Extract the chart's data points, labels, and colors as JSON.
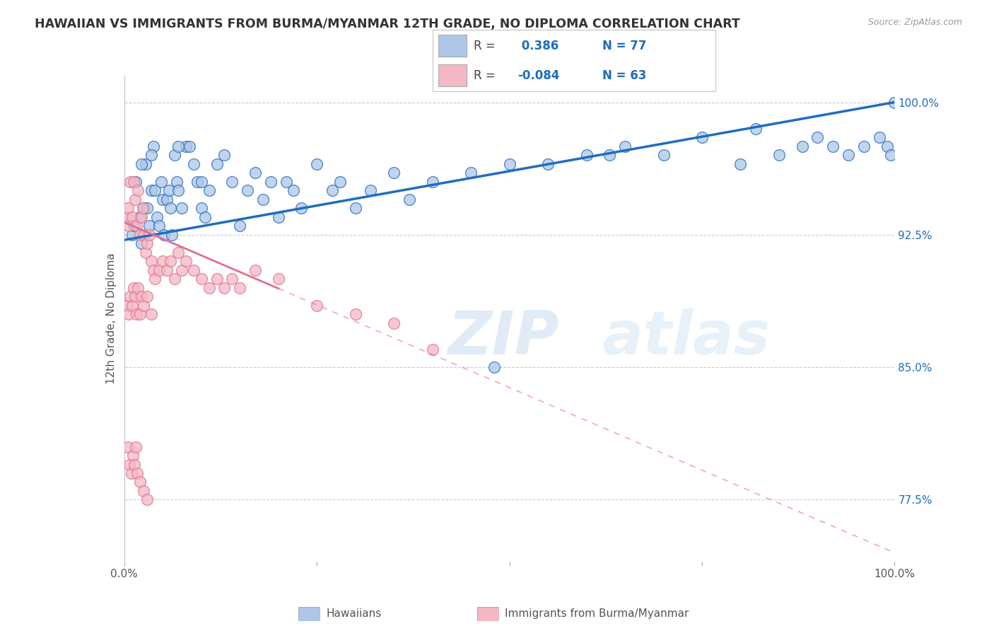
{
  "title": "HAWAIIAN VS IMMIGRANTS FROM BURMA/MYANMAR 12TH GRADE, NO DIPLOMA CORRELATION CHART",
  "source": "Source: ZipAtlas.com",
  "ylabel": "12th Grade, No Diploma",
  "right_yticks": [
    77.5,
    85.0,
    92.5,
    100.0
  ],
  "right_ytick_labels": [
    "77.5%",
    "85.0%",
    "92.5%",
    "100.0%"
  ],
  "xmin": 0.0,
  "xmax": 100.0,
  "ymin": 74.0,
  "ymax": 101.5,
  "blue_R": 0.386,
  "blue_N": 77,
  "pink_R": -0.084,
  "pink_N": 63,
  "blue_color": "#aec6e8",
  "blue_line_color": "#1f6dbf",
  "pink_color": "#f4b8c4",
  "pink_line_color": "#e07090",
  "watermark_zip": "ZIP",
  "watermark_atlas": "atlas",
  "legend_label_blue": "Hawaiians",
  "legend_label_pink": "Immigrants from Burma/Myanmar",
  "blue_scatter_x": [
    1.0,
    1.2,
    1.5,
    2.0,
    2.2,
    2.5,
    2.8,
    3.0,
    3.2,
    3.5,
    3.8,
    4.0,
    4.2,
    4.5,
    4.8,
    5.0,
    5.2,
    5.5,
    5.8,
    6.0,
    6.2,
    6.5,
    6.8,
    7.0,
    7.5,
    8.0,
    8.5,
    9.0,
    9.5,
    10.0,
    10.5,
    11.0,
    12.0,
    13.0,
    14.0,
    15.0,
    16.0,
    17.0,
    18.0,
    19.0,
    20.0,
    21.0,
    22.0,
    23.0,
    25.0,
    27.0,
    28.0,
    30.0,
    32.0,
    35.0,
    37.0,
    40.0,
    45.0,
    50.0,
    55.0,
    60.0,
    65.0,
    70.0,
    75.0,
    80.0,
    82.0,
    85.0,
    88.0,
    90.0,
    92.0,
    94.0,
    96.0,
    98.0,
    99.0,
    99.5,
    100.0,
    48.0,
    63.0,
    3.5,
    2.2,
    7.0,
    10.0
  ],
  "blue_scatter_y": [
    92.5,
    93.0,
    95.5,
    93.5,
    92.0,
    94.0,
    96.5,
    94.0,
    93.0,
    95.0,
    97.5,
    95.0,
    93.5,
    93.0,
    95.5,
    94.5,
    92.5,
    94.5,
    95.0,
    94.0,
    92.5,
    97.0,
    95.5,
    95.0,
    94.0,
    97.5,
    97.5,
    96.5,
    95.5,
    94.0,
    93.5,
    95.0,
    96.5,
    97.0,
    95.5,
    93.0,
    95.0,
    96.0,
    94.5,
    95.5,
    93.5,
    95.5,
    95.0,
    94.0,
    96.5,
    95.0,
    95.5,
    94.0,
    95.0,
    96.0,
    94.5,
    95.5,
    96.0,
    96.5,
    96.5,
    97.0,
    97.5,
    97.0,
    98.0,
    96.5,
    98.5,
    97.0,
    97.5,
    98.0,
    97.5,
    97.0,
    97.5,
    98.0,
    97.5,
    97.0,
    100.0,
    85.0,
    97.0,
    97.0,
    96.5,
    97.5,
    95.5
  ],
  "pink_scatter_x": [
    0.3,
    0.5,
    0.6,
    0.8,
    1.0,
    1.2,
    1.4,
    1.6,
    1.8,
    2.0,
    2.2,
    2.4,
    2.6,
    2.8,
    3.0,
    3.2,
    3.5,
    3.8,
    4.0,
    4.5,
    5.0,
    5.5,
    6.0,
    6.5,
    7.0,
    7.5,
    8.0,
    9.0,
    10.0,
    11.0,
    12.0,
    13.0,
    14.0,
    15.0,
    17.0,
    20.0,
    25.0,
    30.0,
    35.0,
    40.0,
    0.4,
    0.6,
    0.8,
    1.0,
    1.2,
    1.4,
    1.6,
    1.8,
    2.0,
    2.2,
    2.5,
    3.0,
    3.5,
    0.5,
    0.7,
    0.9,
    1.1,
    1.3,
    1.5,
    1.7,
    2.0,
    2.5,
    3.0
  ],
  "pink_scatter_y": [
    93.5,
    94.0,
    93.0,
    95.5,
    93.5,
    95.5,
    94.5,
    93.0,
    95.0,
    92.5,
    93.5,
    94.0,
    92.5,
    91.5,
    92.0,
    92.5,
    91.0,
    90.5,
    90.0,
    90.5,
    91.0,
    90.5,
    91.0,
    90.0,
    91.5,
    90.5,
    91.0,
    90.5,
    90.0,
    89.5,
    90.0,
    89.5,
    90.0,
    89.5,
    90.5,
    90.0,
    88.5,
    88.0,
    87.5,
    86.0,
    88.5,
    88.0,
    89.0,
    88.5,
    89.5,
    89.0,
    88.0,
    89.5,
    88.0,
    89.0,
    88.5,
    89.0,
    88.0,
    80.5,
    79.5,
    79.0,
    80.0,
    79.5,
    80.5,
    79.0,
    78.5,
    78.0,
    77.5
  ],
  "blue_trendline_x0": 0.0,
  "blue_trendline_y0": 92.2,
  "blue_trendline_x1": 100.0,
  "blue_trendline_y1": 100.0,
  "pink_trendline_x0": 0.0,
  "pink_trendline_y0": 93.2,
  "pink_trendline_x1": 100.0,
  "pink_trendline_y1": 74.5
}
